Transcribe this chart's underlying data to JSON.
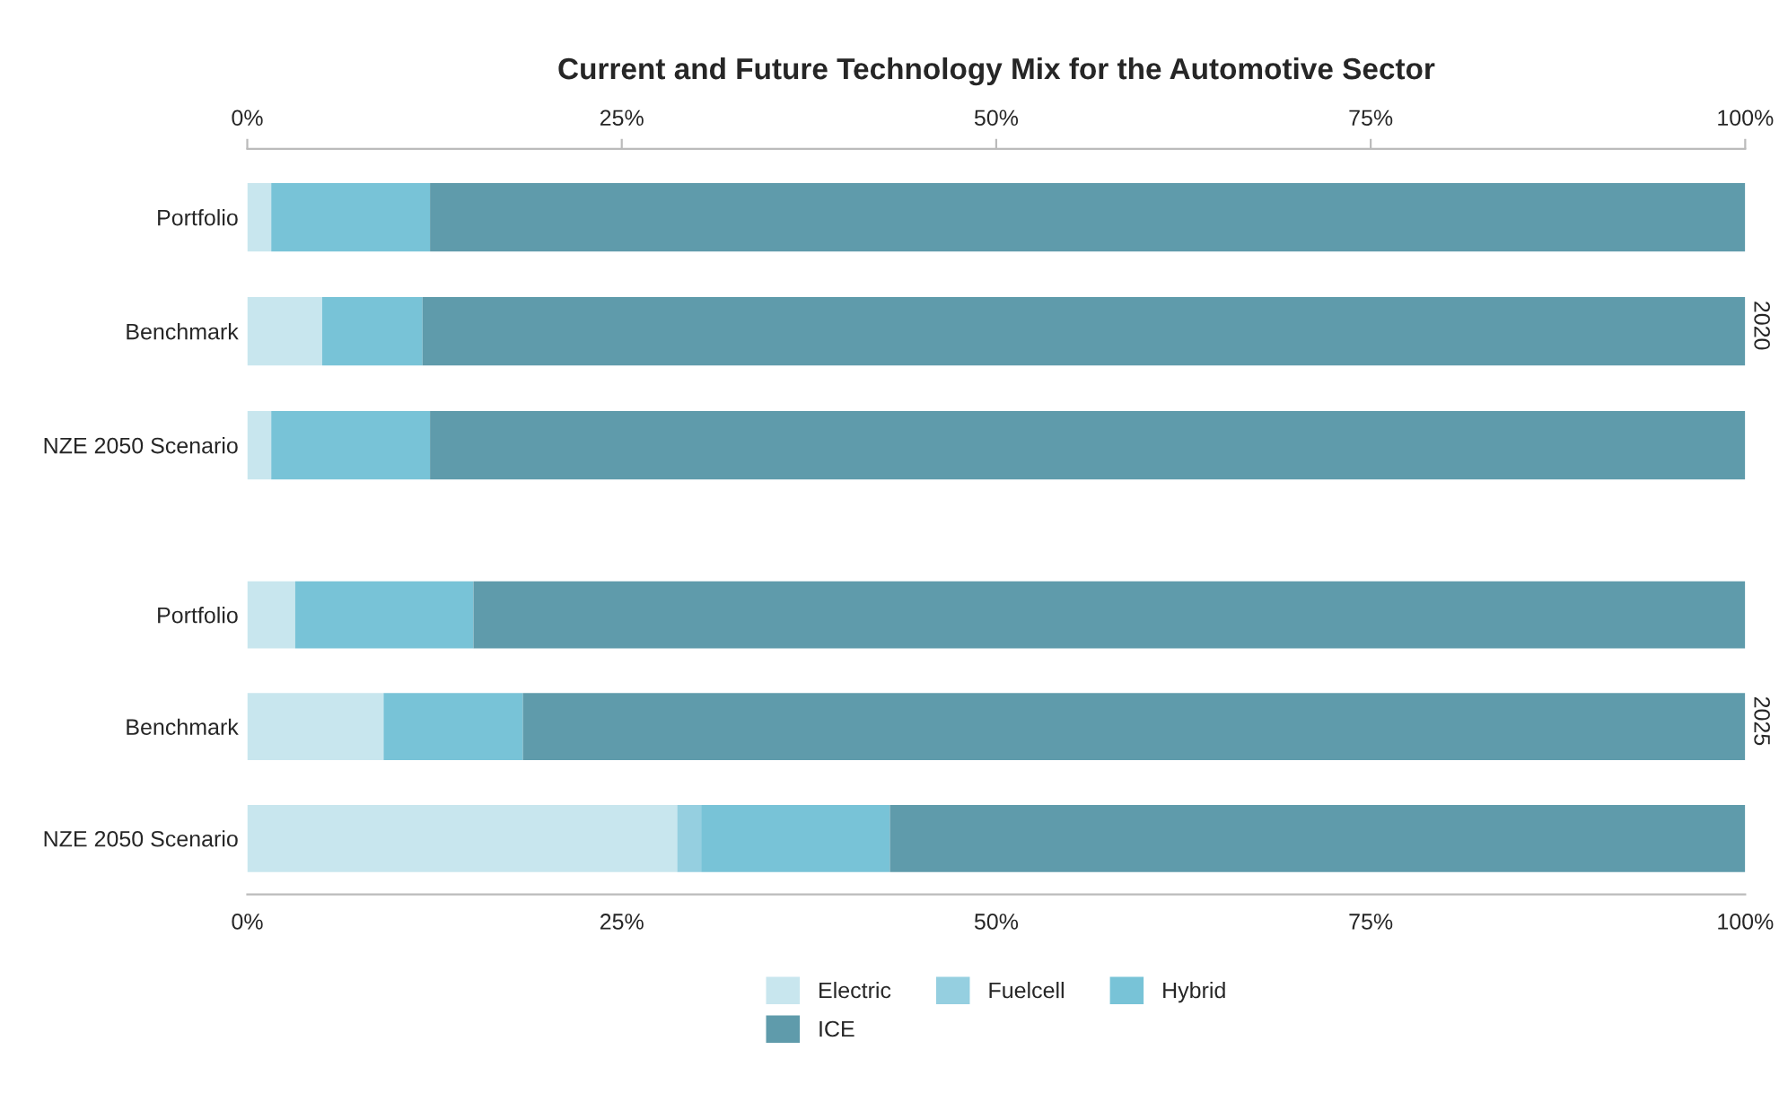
{
  "chart_data": [
    {
      "type": "bar",
      "orientation": "horizontal",
      "stacked": true,
      "title": "Current and Future Technology Mix for the Automotive Sector",
      "categories": [
        "Portfolio",
        "Benchmark",
        "NZE 2050 Scenario"
      ],
      "series": [
        {
          "color": "#c8e6ee",
          "values": [
            1.6,
            5.0,
            1.6
          ]
        },
        {
          "color": "#78c3d7",
          "values": [
            10.6,
            6.7,
            10.6
          ]
        },
        {
          "color": "#5f9bab",
          "values": [
            87.8,
            88.3,
            87.8
          ]
        }
      ],
      "xlim": [
        0,
        100
      ],
      "xticks": [
        {
          "value": 0,
          "label": "0%"
        },
        {
          "value": 25,
          "label": "25%"
        },
        {
          "value": 50,
          "label": "50%"
        },
        {
          "value": 75,
          "label": "75%"
        },
        {
          "value": 100,
          "label": "100%"
        }
      ],
      "annotations": [
        "2020"
      ],
      "grid": false,
      "legend": false
    },
    {
      "type": "bar",
      "orientation": "horizontal",
      "stacked": true,
      "categories": [
        "Portfolio",
        "Benchmark",
        "NZE 2050 Scenario"
      ],
      "series": [
        {
          "name": "Electric",
          "color": "#c8e6ee",
          "values": [
            3.2,
            9.1,
            28.7
          ]
        },
        {
          "name": "Fuelcell",
          "color": "#95cfe0",
          "values": [
            0,
            0,
            1.6
          ]
        },
        {
          "name": "Hybrid",
          "color": "#78c3d7",
          "values": [
            11.9,
            9.3,
            12.6
          ]
        },
        {
          "name": "ICE",
          "color": "#5f9bab",
          "values": [
            84.9,
            81.6,
            57.1
          ]
        }
      ],
      "xlim": [
        0,
        100
      ],
      "xticks": [
        {
          "value": 0,
          "label": "0%"
        },
        {
          "value": 25,
          "label": "25%"
        },
        {
          "value": 50,
          "label": "50%"
        },
        {
          "value": 75,
          "label": "75%"
        },
        {
          "value": 100,
          "label": "100%"
        }
      ],
      "annotations": [
        "2025"
      ],
      "grid": false,
      "legend": "bottom"
    }
  ]
}
